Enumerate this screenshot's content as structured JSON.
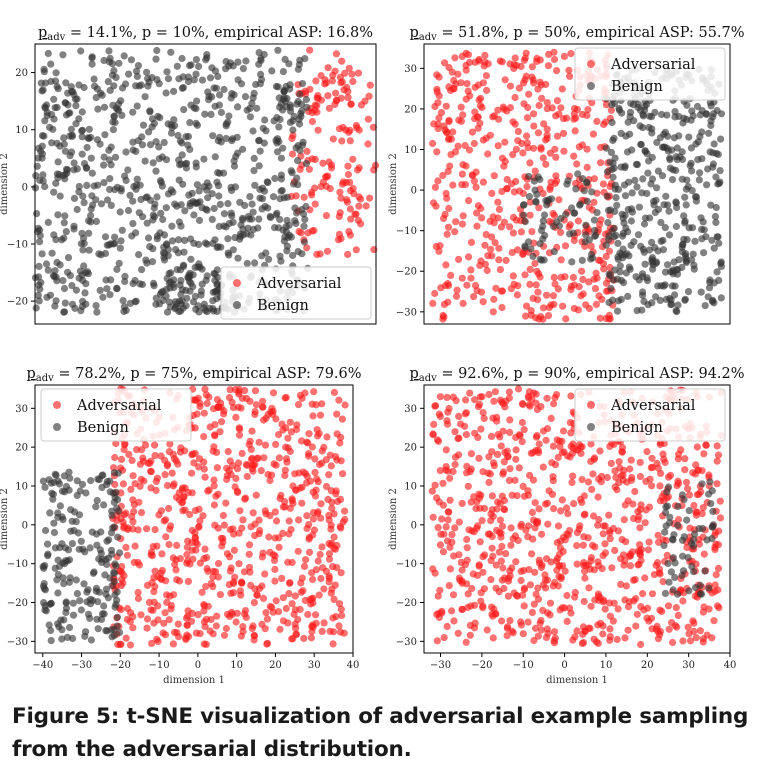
{
  "caption": {
    "text": "Figure 5: t-SNE visualization of adversarial example sampling from the adversarial distribution."
  },
  "colors": {
    "adversarial": "#ff1a1a",
    "benign": "#333333",
    "axis": "#000000"
  },
  "chart_data": [
    {
      "type": "scatter",
      "title_sym": "p",
      "title_sub": "adv",
      "title_rest": " = 14.1%, p = 10%, empirical ASP: 16.8%",
      "xlabel": "",
      "ylabel": "dimension 2",
      "xlim": [
        -40,
        40
      ],
      "ylim": [
        -24,
        25
      ],
      "xticks": [],
      "yticks": [
        -20,
        -10,
        0,
        10,
        20
      ],
      "legend": {
        "position": "lower-right",
        "entries": [
          "Adversarial",
          "Benign"
        ]
      },
      "series": [
        {
          "name": "Adversarial",
          "color": "#ff1a1a",
          "regions": [
            {
              "x": [
                20,
                40
              ],
              "y": [
                -12,
                20
              ],
              "count": 140
            },
            {
              "x": [
                24,
                34
              ],
              "y": [
                14,
                24
              ],
              "count": 12
            }
          ]
        },
        {
          "name": "Benign",
          "color": "#333333",
          "regions": [
            {
              "x": [
                -40,
                24
              ],
              "y": [
                -22,
                24
              ],
              "count": 850
            },
            {
              "x": [
                -10,
                6
              ],
              "y": [
                -22,
                -14
              ],
              "count": 50
            }
          ]
        }
      ]
    },
    {
      "type": "scatter",
      "title_sym": "p",
      "title_sub": "adv",
      "title_rest": " = 51.8%, p = 50%, empirical ASP: 55.7%",
      "xlabel": "",
      "ylabel": "dimension 2",
      "xlim": [
        -34,
        40
      ],
      "ylim": [
        -33,
        36
      ],
      "xticks": [],
      "yticks": [
        -30,
        -20,
        -10,
        0,
        10,
        20,
        30
      ],
      "legend": {
        "position": "top-right",
        "entries": [
          "Adversarial",
          "Benign"
        ]
      },
      "series": [
        {
          "name": "Adversarial",
          "color": "#ff1a1a",
          "regions": [
            {
              "x": [
                -32,
                12
              ],
              "y": [
                -32,
                34
              ],
              "count": 520
            }
          ]
        },
        {
          "name": "Benign",
          "color": "#333333",
          "regions": [
            {
              "x": [
                10,
                38
              ],
              "y": [
                -30,
                30
              ],
              "count": 420
            },
            {
              "x": [
                -10,
                8
              ],
              "y": [
                -18,
                4
              ],
              "count": 70
            }
          ]
        }
      ]
    },
    {
      "type": "scatter",
      "title_sym": "p",
      "title_sub": "adv",
      "title_rest": " = 78.2%, p = 75%, empirical ASP: 79.6%",
      "xlabel": "",
      "ylabel": "dimension 2",
      "xlim": [
        -42,
        40
      ],
      "ylim": [
        -33,
        36
      ],
      "xticks": [
        -40,
        -30,
        -20,
        -10,
        0,
        10,
        20,
        30,
        40
      ],
      "yticks": [
        -30,
        -20,
        -10,
        0,
        10,
        20,
        30
      ],
      "legend": {
        "position": "top-left",
        "entries": [
          "Adversarial",
          "Benign"
        ]
      },
      "series": [
        {
          "name": "Adversarial",
          "color": "#ff1a1a",
          "regions": [
            {
              "x": [
                -22,
                38
              ],
              "y": [
                -31,
                35
              ],
              "count": 760
            }
          ]
        },
        {
          "name": "Benign",
          "color": "#333333",
          "regions": [
            {
              "x": [
                -40,
                -20
              ],
              "y": [
                -30,
                14
              ],
              "count": 200
            }
          ]
        }
      ]
    },
    {
      "type": "scatter",
      "title_sym": "p",
      "title_sub": "adv",
      "title_rest": " = 92.6%, p = 90%, empirical ASP: 94.2%",
      "xlabel": "",
      "ylabel": "dimension 2",
      "xlim": [
        -34,
        40
      ],
      "ylim": [
        -33,
        36
      ],
      "xticks": [
        -30,
        -20,
        -10,
        0,
        10,
        20,
        30,
        40
      ],
      "yticks": [
        -30,
        -20,
        -10,
        0,
        10,
        20,
        30
      ],
      "legend": {
        "position": "top-right",
        "entries": [
          "Adversarial",
          "Benign"
        ]
      },
      "series": [
        {
          "name": "Adversarial",
          "color": "#ff1a1a",
          "regions": [
            {
              "x": [
                -32,
                38
              ],
              "y": [
                -31,
                35
              ],
              "count": 880
            }
          ]
        },
        {
          "name": "Benign",
          "color": "#333333",
          "regions": [
            {
              "x": [
                24,
                36
              ],
              "y": [
                -18,
                12
              ],
              "count": 60
            }
          ]
        }
      ]
    }
  ],
  "xaxis_label": "dimension 1"
}
